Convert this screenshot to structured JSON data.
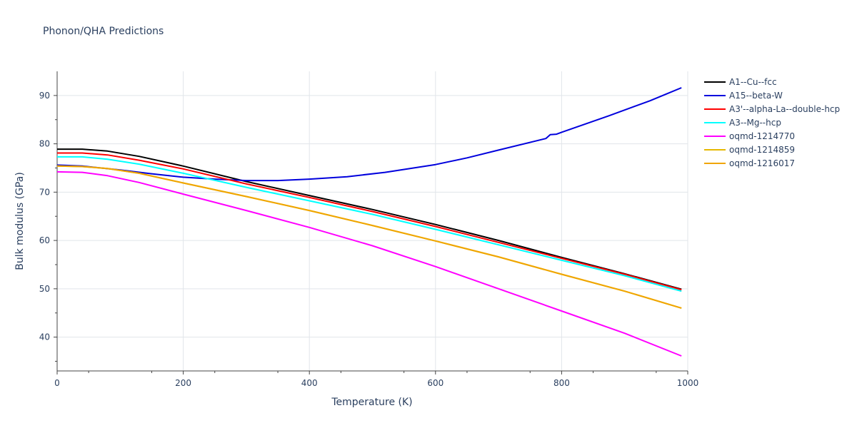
{
  "title": "Phonon/QHA Predictions",
  "chart_data": {
    "type": "line",
    "title": "Phonon/QHA Predictions",
    "xlabel": "Temperature (K)",
    "ylabel": "Bulk modulus (GPa)",
    "xlim": [
      0,
      1000
    ],
    "ylim": [
      33,
      95
    ],
    "xticks": [
      0,
      200,
      400,
      600,
      800,
      1000
    ],
    "yticks": [
      40,
      50,
      60,
      70,
      80,
      90
    ],
    "grid": true,
    "legend_position": "top-right",
    "series": [
      {
        "name": "A1--Cu--fcc",
        "color": "#000000",
        "x": [
          0,
          40,
          80,
          130,
          200,
          300,
          400,
          500,
          600,
          700,
          800,
          900,
          990
        ],
        "y": [
          78.9,
          78.9,
          78.5,
          77.4,
          75.4,
          72.2,
          69.3,
          66.4,
          63.3,
          60.0,
          56.5,
          53.1,
          49.9
        ]
      },
      {
        "name": "A15--beta-W",
        "color": "#0000dd",
        "x": [
          0,
          40,
          100,
          150,
          200,
          250,
          300,
          350,
          400,
          460,
          520,
          600,
          650,
          700,
          775,
          782,
          792,
          800,
          875,
          940,
          990
        ],
        "y": [
          75.6,
          75.4,
          74.6,
          73.8,
          73.1,
          72.7,
          72.4,
          72.4,
          72.7,
          73.2,
          74.1,
          75.7,
          77.1,
          78.7,
          81.1,
          81.9,
          82.0,
          82.4,
          85.8,
          88.9,
          91.6
        ]
      },
      {
        "name": "A3'--alpha-La--double-hcp",
        "color": "#ff0000",
        "x": [
          0,
          40,
          80,
          130,
          200,
          300,
          400,
          500,
          600,
          700,
          800,
          900,
          990
        ],
        "y": [
          78.1,
          78.1,
          77.7,
          76.6,
          74.8,
          71.7,
          68.9,
          66.0,
          62.9,
          59.6,
          56.3,
          53.0,
          49.8
        ]
      },
      {
        "name": "A3--Mg--hcp",
        "color": "#00ffff",
        "x": [
          0,
          40,
          80,
          130,
          200,
          300,
          400,
          500,
          600,
          700,
          800,
          900,
          990
        ],
        "y": [
          77.3,
          77.3,
          76.8,
          75.8,
          73.9,
          71.0,
          68.2,
          65.4,
          62.3,
          59.1,
          55.9,
          52.7,
          49.5
        ]
      },
      {
        "name": "oqmd-1214770",
        "color": "#ff00ff",
        "x": [
          0,
          40,
          80,
          130,
          200,
          300,
          400,
          500,
          600,
          700,
          800,
          900,
          990
        ],
        "y": [
          74.2,
          74.1,
          73.4,
          72.0,
          69.6,
          66.2,
          62.7,
          58.9,
          54.6,
          50.0,
          45.4,
          40.8,
          36.1
        ]
      },
      {
        "name": "oqmd-1214859",
        "color": "#e6b800",
        "x": [
          0,
          40,
          80,
          130,
          200,
          300,
          400,
          500,
          600,
          700,
          800,
          900,
          990
        ],
        "y": [
          75.4,
          75.3,
          74.9,
          73.9,
          71.9,
          69.1,
          66.2,
          63.1,
          59.9,
          56.6,
          53.0,
          49.5,
          46.0
        ]
      },
      {
        "name": "oqmd-1216017",
        "color": "#f0a500",
        "x": [
          0,
          40,
          80,
          130,
          200,
          300,
          400,
          500,
          600,
          700,
          800,
          900,
          990
        ],
        "y": [
          75.4,
          75.3,
          74.9,
          73.9,
          71.9,
          69.1,
          66.2,
          63.1,
          59.9,
          56.6,
          53.0,
          49.5,
          46.0
        ]
      }
    ]
  }
}
